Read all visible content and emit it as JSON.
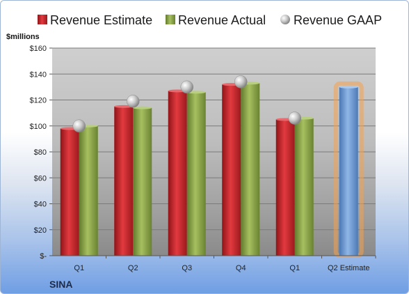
{
  "company": "SINA",
  "unit_label": "$millions",
  "colors": {
    "estimate": "#c0272d",
    "actual": "#8aa448",
    "gaap": "#b8b8b8",
    "future_estimate": "#6d9bd4",
    "highlight": "#f5a04a"
  },
  "chart_data": {
    "type": "bar",
    "categories": [
      "Q1",
      "Q2",
      "Q3",
      "Q4",
      "Q1",
      "Q2 Estimate"
    ],
    "ylim": [
      0,
      160
    ],
    "yticks": [
      0,
      20,
      40,
      60,
      80,
      100,
      120,
      140,
      160
    ],
    "ytick_labels": [
      "$-",
      "$20",
      "$40",
      "$60",
      "$80",
      "$100",
      "$120",
      "$140",
      "$160"
    ],
    "ylabel": "$millions",
    "xlabel": "",
    "grid": true,
    "legend_position": "top",
    "series": [
      {
        "name": "Revenue Estimate",
        "kind": "bar",
        "values": [
          98,
          115,
          127,
          132,
          105,
          130
        ]
      },
      {
        "name": "Revenue Actual",
        "kind": "bar",
        "values": [
          100,
          114,
          126,
          133,
          106,
          null
        ]
      },
      {
        "name": "Revenue GAAP",
        "kind": "marker",
        "values": [
          100,
          119,
          130,
          134,
          106,
          null
        ]
      }
    ]
  }
}
